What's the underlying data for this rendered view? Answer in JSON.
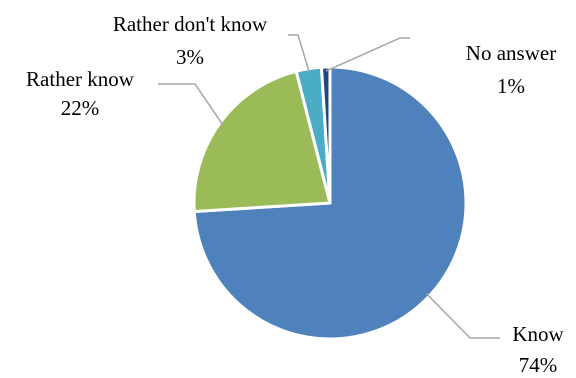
{
  "chart_data": {
    "type": "pie",
    "categories": [
      "Know",
      "Rather know",
      "Rather don't know",
      "No answer"
    ],
    "values": [
      74,
      22,
      3,
      1
    ],
    "value_labels": [
      "74%",
      "22%",
      "3%",
      "1%"
    ],
    "colors": [
      "#4F81BD",
      "#9BBB59",
      "#4BACC6",
      "#1F497D"
    ],
    "title": "",
    "legend": "none",
    "data_labels": "outside with leader lines",
    "start_angle": "12 o'clock, clockwise"
  }
}
